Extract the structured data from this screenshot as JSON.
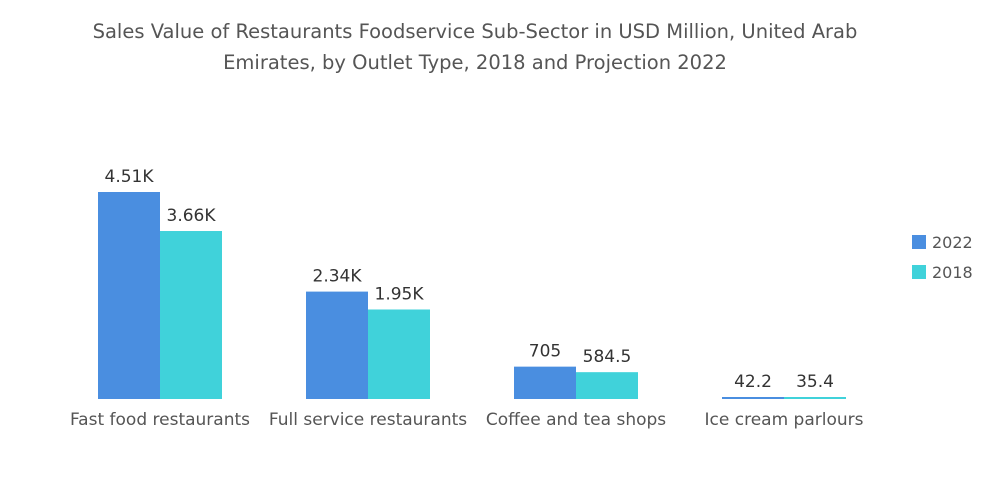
{
  "chart_data": {
    "type": "bar",
    "title_line1": "Sales Value of Restaurants Foodservice Sub-Sector in USD Million, United Arab",
    "title_line2": "Emirates, by Outlet Type, 2018 and Projection 2022",
    "categories": [
      "Fast food restaurants",
      "Full service restaurants",
      "Coffee and tea shops",
      "Ice cream parlours"
    ],
    "series": [
      {
        "name": "2022",
        "color": "#4a8ee0",
        "values": [
          4510,
          2340,
          705,
          42.2
        ],
        "labels": [
          "4.51K",
          "2.34K",
          "705",
          "42.2"
        ]
      },
      {
        "name": "2018",
        "color": "#40d2da",
        "values": [
          3660,
          1950,
          584.5,
          35.4
        ],
        "labels": [
          "3.66K",
          "1.95K",
          "584.5",
          "35.4"
        ]
      }
    ],
    "xlabel": "",
    "ylabel": "",
    "ylim": [
      0,
      4510
    ],
    "grid": false,
    "legend_position": "right"
  }
}
